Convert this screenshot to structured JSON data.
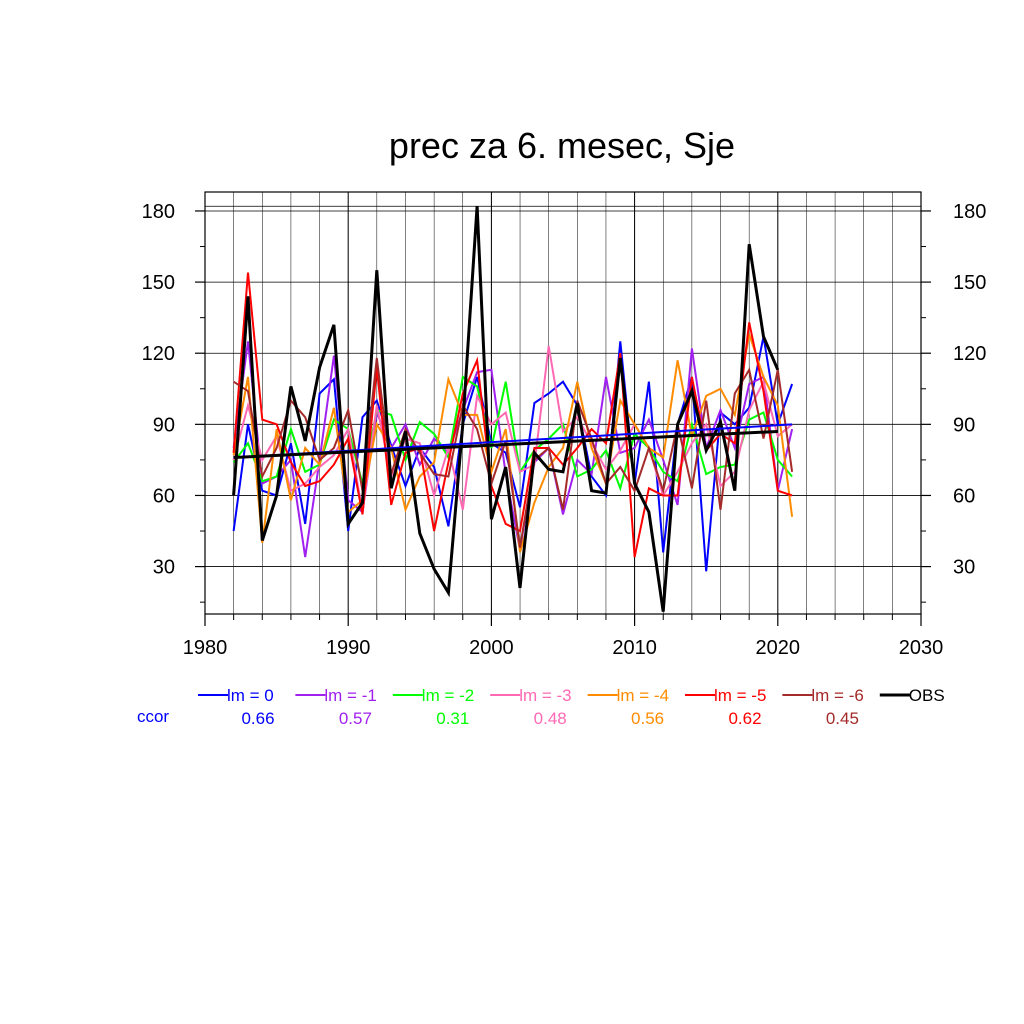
{
  "chart_data": {
    "type": "line",
    "title": "prec za 6. mesec, Sje",
    "xlabel": "",
    "ylabel": "",
    "xlim": [
      1980,
      2030
    ],
    "ylim": [
      10,
      188
    ],
    "xticks": [
      1980,
      1990,
      2000,
      2010,
      2020,
      2030
    ],
    "yticks": [
      30,
      60,
      90,
      120,
      150,
      180
    ],
    "grid": true,
    "legend_position": "bottom",
    "x": [
      1982,
      1983,
      1984,
      1985,
      1986,
      1987,
      1988,
      1989,
      1990,
      1991,
      1992,
      1993,
      1994,
      1995,
      1996,
      1997,
      1998,
      1999,
      2000,
      2001,
      2002,
      2003,
      2004,
      2005,
      2006,
      2007,
      2008,
      2009,
      2010,
      2011,
      2012,
      2013,
      2014,
      2015,
      2016,
      2017,
      2018,
      2019,
      2020,
      2021
    ],
    "ccor_label": "ccor",
    "series": [
      {
        "name": "lm = 0",
        "color": "#0000ff",
        "ccor": "0.66",
        "values": [
          45,
          90,
          62,
          60,
          82,
          48,
          103,
          109,
          45,
          93,
          100,
          81,
          64,
          80,
          72,
          47,
          90,
          110,
          82,
          78,
          55,
          99,
          103,
          108,
          98,
          68,
          60,
          125,
          65,
          108,
          36,
          90,
          110,
          28,
          95,
          90,
          97,
          127,
          90,
          107
        ]
      },
      {
        "name": "lm = -1",
        "color": "#a020f0",
        "ccor": "0.57",
        "values": [
          80,
          125,
          65,
          68,
          75,
          34,
          75,
          119,
          58,
          53,
          95,
          80,
          90,
          73,
          84,
          78,
          96,
          112,
          113,
          69,
          37,
          74,
          80,
          52,
          75,
          69,
          110,
          78,
          80,
          92,
          75,
          56,
          122,
          80,
          96,
          80,
          107,
          110,
          62,
          88
        ]
      },
      {
        "name": "lm = -2",
        "color": "#00ff00",
        "ccor": "0.31",
        "values": [
          74,
          82,
          66,
          68,
          88,
          70,
          73,
          92,
          88,
          65,
          96,
          94,
          75,
          91,
          86,
          76,
          110,
          106,
          80,
          108,
          70,
          79,
          84,
          90,
          68,
          71,
          79,
          63,
          86,
          80,
          70,
          66,
          90,
          69,
          72,
          73,
          92,
          95,
          75,
          68
        ]
      },
      {
        "name": "lm = -3",
        "color": "#ff69b4",
        "ccor": "0.48",
        "values": [
          75,
          98,
          75,
          85,
          62,
          65,
          72,
          77,
          88,
          53,
          98,
          68,
          84,
          82,
          60,
          80,
          54,
          102,
          90,
          95,
          70,
          73,
          123,
          87,
          93,
          82,
          71,
          79,
          90,
          80,
          60,
          70,
          82,
          90,
          64,
          70,
          96,
          108,
          85,
          90
        ]
      },
      {
        "name": "lm = -4",
        "color": "#ff8c00",
        "ccor": "0.56",
        "values": [
          77,
          110,
          40,
          88,
          58,
          80,
          73,
          97,
          53,
          58,
          90,
          80,
          54,
          68,
          74,
          109,
          94,
          94,
          70,
          88,
          36,
          57,
          72,
          80,
          108,
          80,
          65,
          100,
          90,
          80,
          76,
          117,
          85,
          102,
          105,
          94,
          128,
          110,
          98,
          51
        ]
      },
      {
        "name": "lm = -5",
        "color": "#ff0000",
        "ccor": "0.62",
        "values": [
          78,
          154,
          92,
          90,
          74,
          64,
          66,
          73,
          84,
          52,
          114,
          56,
          78,
          80,
          45,
          74,
          103,
          117,
          64,
          48,
          45,
          80,
          80,
          73,
          80,
          88,
          82,
          120,
          34,
          63,
          60,
          60,
          110,
          79,
          86,
          82,
          133,
          104,
          62,
          60
        ]
      },
      {
        "name": "lm = -6",
        "color": "#a52a2a",
        "ccor": "0.45",
        "values": [
          108,
          104,
          68,
          80,
          100,
          93,
          75,
          80,
          96,
          62,
          118,
          69,
          88,
          78,
          69,
          68,
          98,
          88,
          65,
          83,
          38,
          75,
          80,
          54,
          100,
          84,
          65,
          72,
          62,
          80,
          62,
          90,
          63,
          100,
          54,
          103,
          113,
          84,
          113,
          70
        ]
      },
      {
        "name": "OBS",
        "color": "#000000",
        "ccor": "",
        "values": [
          60,
          144,
          41,
          60,
          106,
          83,
          114,
          132,
          48,
          57,
          155,
          63,
          87,
          44,
          29,
          19,
          90,
          182,
          50,
          72,
          21,
          78,
          71,
          70,
          99,
          62,
          61,
          118,
          65,
          53,
          11,
          90,
          104,
          79,
          91,
          62,
          166,
          127,
          113,
          null
        ]
      }
    ],
    "trends": [
      {
        "name": "lm = 0",
        "color": "#0000ff",
        "start": [
          1982,
          76
        ],
        "end": [
          2021,
          90
        ]
      },
      {
        "name": "OBS",
        "color": "#000000",
        "start": [
          1982,
          76
        ],
        "end": [
          2020,
          87
        ]
      }
    ]
  }
}
